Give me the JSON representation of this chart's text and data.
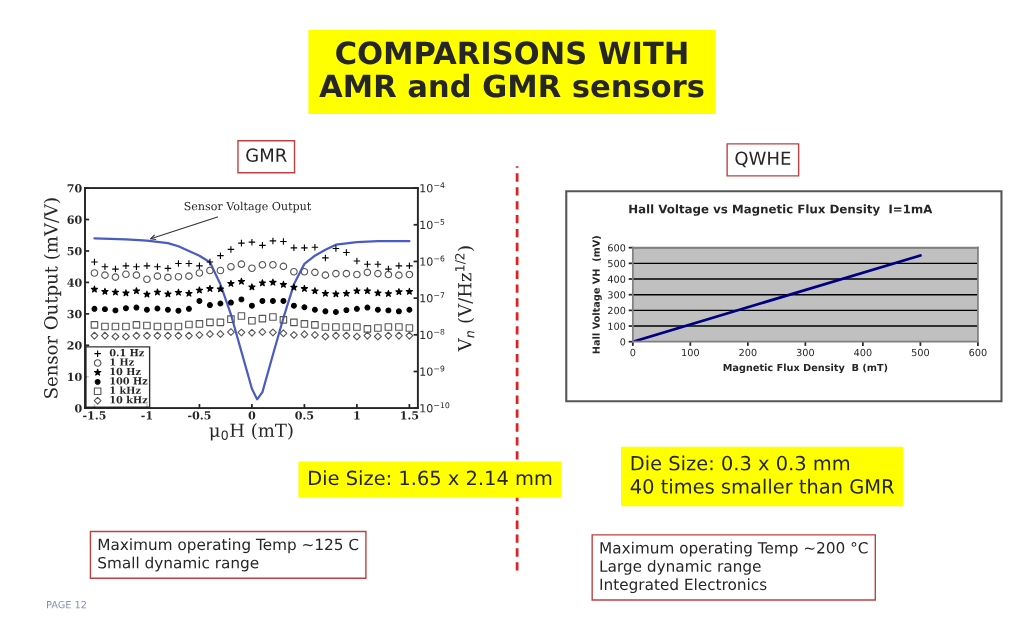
{
  "chart_data": [
    {
      "type": "other",
      "title": "COMPARISONS WITH\nAMR and GMR sensors",
      "annotations": [
        "PAGE 12"
      ]
    },
    {
      "type": "line",
      "title": "GMR",
      "xlabel": "μ$_{0}$H (mT)",
      "ylabel": "Sensor Output (mV/V)",
      "y2label": "V$_{n}$ (V/Hz$^{1/2}$)",
      "xlim": [
        -1.59,
        1.58
      ],
      "xticks": [
        {
          "value": -1.5,
          "label": "-1.5"
        },
        {
          "value": -1,
          "label": "-1"
        },
        {
          "value": -0.5,
          "label": "-0.5"
        },
        0,
        0.5,
        1,
        1.5
      ],
      "ylim": [
        0,
        70
      ],
      "yticks": [
        0,
        10,
        20,
        30,
        40,
        50,
        60,
        70
      ],
      "y2lim": [
        1e-10,
        0.0001
      ],
      "y2ticks": [
        {
          "value": 1e-10,
          "label": "10$^{−10}$"
        },
        {
          "value": 1e-09,
          "label": "10$^{−9}$"
        },
        {
          "value": 1e-08,
          "label": "10$^{−8}$"
        },
        {
          "value": 1e-07,
          "label": "10$^{−7}$"
        },
        {
          "value": 1e-06,
          "label": "10$^{−6}$"
        },
        {
          "value": 1e-05,
          "label": "10$^{−5}$"
        },
        {
          "value": 0.0001,
          "label": "10$^{−4}$"
        }
      ],
      "log": "y2",
      "grid": false,
      "legend": "bottom left",
      "x": [
        -1.5,
        -1.4,
        -1.3,
        -1.2,
        -1.1,
        -1.0,
        -0.9,
        -0.8,
        -0.7,
        -0.6,
        -0.5,
        -0.4,
        -0.3,
        -0.2,
        -0.1,
        0,
        0.1,
        0.2,
        0.3,
        0.4,
        0.5,
        0.6,
        0.7,
        0.8,
        0.9,
        1.0,
        1.1,
        1.2,
        1.3,
        1.4,
        1.5
      ],
      "series": [
        {
          "type": "line",
          "color": "#4a5bc4",
          "marker": "none",
          "x": [
            -1.5,
            -1.2,
            -1.0,
            -0.8,
            -0.7,
            -0.6,
            -0.5,
            -0.4,
            -0.3,
            -0.2,
            -0.1,
            0,
            0.05,
            0.1,
            0.2,
            0.3,
            0.4,
            0.5,
            0.6,
            0.7,
            0.8,
            1.0,
            1.2,
            1.5
          ],
          "values": [
            54,
            53.7,
            53.3,
            52.5,
            51.5,
            50,
            48.5,
            46.4,
            39.4,
            29.8,
            18,
            6.2,
            2.8,
            5.1,
            17,
            28.7,
            39.4,
            45.9,
            48.5,
            50.4,
            52,
            52.8,
            53.1,
            53.1
          ]
        },
        {
          "type": "scatter",
          "name": "0.1 Hz",
          "axis": "y2",
          "color": "#000000",
          "marker": "cross",
          "values": [
            9.7e-07,
            7.2e-07,
            6.2e-07,
            7.6e-07,
            7.2e-07,
            7.6e-07,
            7.2e-07,
            6.5e-07,
            8.8e-07,
            8.8e-07,
            7.6e-07,
            9.7e-07,
            1.44e-06,
            2.13e-06,
            3.16e-06,
            3.36e-06,
            2.75e-06,
            3.63e-06,
            3.49e-06,
            2.35e-06,
            2.35e-06,
            2.45e-06,
            1.25e-06,
            2.26e-06,
            1.75e-06,
            1.03e-06,
            8.4e-07,
            8.4e-07,
            6.2e-07,
            7.6e-07,
            7.6e-07
          ]
        },
        {
          "type": "scatter",
          "name": "1 Hz",
          "axis": "y2",
          "color": "#555555",
          "marker": "circle",
          "values": [
            4.85e-07,
            4.23e-07,
            3.75e-07,
            4.48e-07,
            4.23e-07,
            3.27e-07,
            3.98e-07,
            3.68e-07,
            3.83e-07,
            3.98e-07,
            4.85e-07,
            5.68e-07,
            5.68e-07,
            7.2e-07,
            8.43e-07,
            6.52e-07,
            8.1e-07,
            8.1e-07,
            7.34e-07,
            5.25e-07,
            5.25e-07,
            5.05e-07,
            4.23e-07,
            4.66e-07,
            4.66e-07,
            4.4e-07,
            5.05e-07,
            4.66e-07,
            4.4e-07,
            4.23e-07,
            4.4e-07
          ]
        },
        {
          "type": "scatter",
          "name": "10 Hz",
          "axis": "y2",
          "color": "#000000",
          "marker": "star",
          "values": [
            1.74e-07,
            1.51e-07,
            1.45e-07,
            1.37e-07,
            1.57e-07,
            1.27e-07,
            1.45e-07,
            1.29e-07,
            1.43e-07,
            1.34e-07,
            1.64e-07,
            1.81e-07,
            1.77e-07,
            2.48e-07,
            2.85e-07,
            2e-07,
            2.58e-07,
            2.68e-07,
            2.34e-07,
            1.96e-07,
            1.81e-07,
            1.57e-07,
            1.34e-07,
            1.29e-07,
            1.34e-07,
            1.57e-07,
            1.57e-07,
            1.37e-07,
            1.32e-07,
            1.48e-07,
            1.51e-07
          ]
        },
        {
          "type": "scatter",
          "name": "100 Hz",
          "axis": "y2",
          "color": "#000000",
          "marker": "circle",
          "values": [
            5.11e-08,
            5.01e-08,
            4.63e-08,
            5.32e-08,
            5.53e-08,
            4.82e-08,
            5.21e-08,
            4.82e-08,
            4.54e-08,
            5.11e-08,
            8.38e-08,
            6.47e-08,
            7.15e-08,
            7.59e-08,
            9.25e-08,
            6.22e-08,
            8.38e-08,
            8.38e-08,
            8.38e-08,
            6.22e-08,
            5.64e-08,
            4.82e-08,
            4.37e-08,
            4.19e-08,
            4.72e-08,
            5.11e-08,
            5.53e-08,
            4.82e-08,
            4.63e-08,
            4.37e-08,
            4.82e-08
          ]
        },
        {
          "type": "scatter",
          "name": "1 kHz",
          "axis": "y2",
          "color": "#555555",
          "marker": "square",
          "values": [
            1.87e-08,
            1.69e-08,
            1.69e-08,
            1.69e-08,
            1.87e-08,
            1.8e-08,
            1.69e-08,
            1.69e-08,
            1.69e-08,
            1.91e-08,
            1.98e-08,
            2.19e-08,
            2.19e-08,
            2.67e-08,
            3.25e-08,
            2.42e-08,
            2.77e-08,
            3.06e-08,
            2.56e-08,
            2.19e-08,
            1.98e-08,
            1.87e-08,
            1.63e-08,
            1.63e-08,
            1.63e-08,
            1.63e-08,
            1.45e-08,
            1.53e-08,
            1.63e-08,
            1.63e-08,
            1.53e-08
          ]
        },
        {
          "type": "scatter",
          "name": "10 kHz",
          "axis": "y2",
          "color": "#555555",
          "marker": "diamond",
          "values": [
            9.5e-09,
            9.5e-09,
            9e-09,
            9e-09,
            9.5e-09,
            9.5e-09,
            9.5e-09,
            9.5e-09,
            9.5e-09,
            9.5e-09,
            9.9e-09,
            1.05e-08,
            1.05e-08,
            1.19e-08,
            1.16e-08,
            1.14e-08,
            1.19e-08,
            1.16e-08,
            1.1e-08,
            9.9e-09,
            1.03e-08,
            9.9e-09,
            9e-09,
            9.5e-09,
            9.5e-09,
            9e-09,
            9.5e-09,
            9e-09,
            9.5e-09,
            9.5e-09,
            9.5e-09
          ]
        }
      ],
      "annotations": [
        {
          "text": "Sensor Voltage Output",
          "x": -1.0,
          "y": 53.5
        },
        "Die Size: 1.65 x 2.14 mm",
        "Maximum operating Temp ~125 C\nSmall dynamic range"
      ]
    },
    {
      "type": "line",
      "title": "QWHE",
      "subtitle": "Hall Voltage vs Magnetic Flux Density  I=1mA",
      "xlabel": "Magnetic Flux Density  B (mT)",
      "ylabel": "Hall Voltage VH  (mV)",
      "xlim": [
        0,
        600
      ],
      "xticks": [
        0,
        100,
        200,
        300,
        400,
        500,
        600
      ],
      "ylim": [
        0,
        600
      ],
      "yticks": [
        0,
        100,
        200,
        300,
        400,
        500,
        600
      ],
      "grid": "y",
      "series": [
        {
          "color": "#000080",
          "x": [
            0,
            500
          ],
          "values": [
            0,
            550
          ]
        }
      ],
      "annotations": [
        "Die Size: 0.3 x 0.3 mm\n40 times smaller than GMR",
        "Maximum operating Temp ~200 °C\nLarge dynamic range\nIntegrated Electronics"
      ]
    }
  ]
}
